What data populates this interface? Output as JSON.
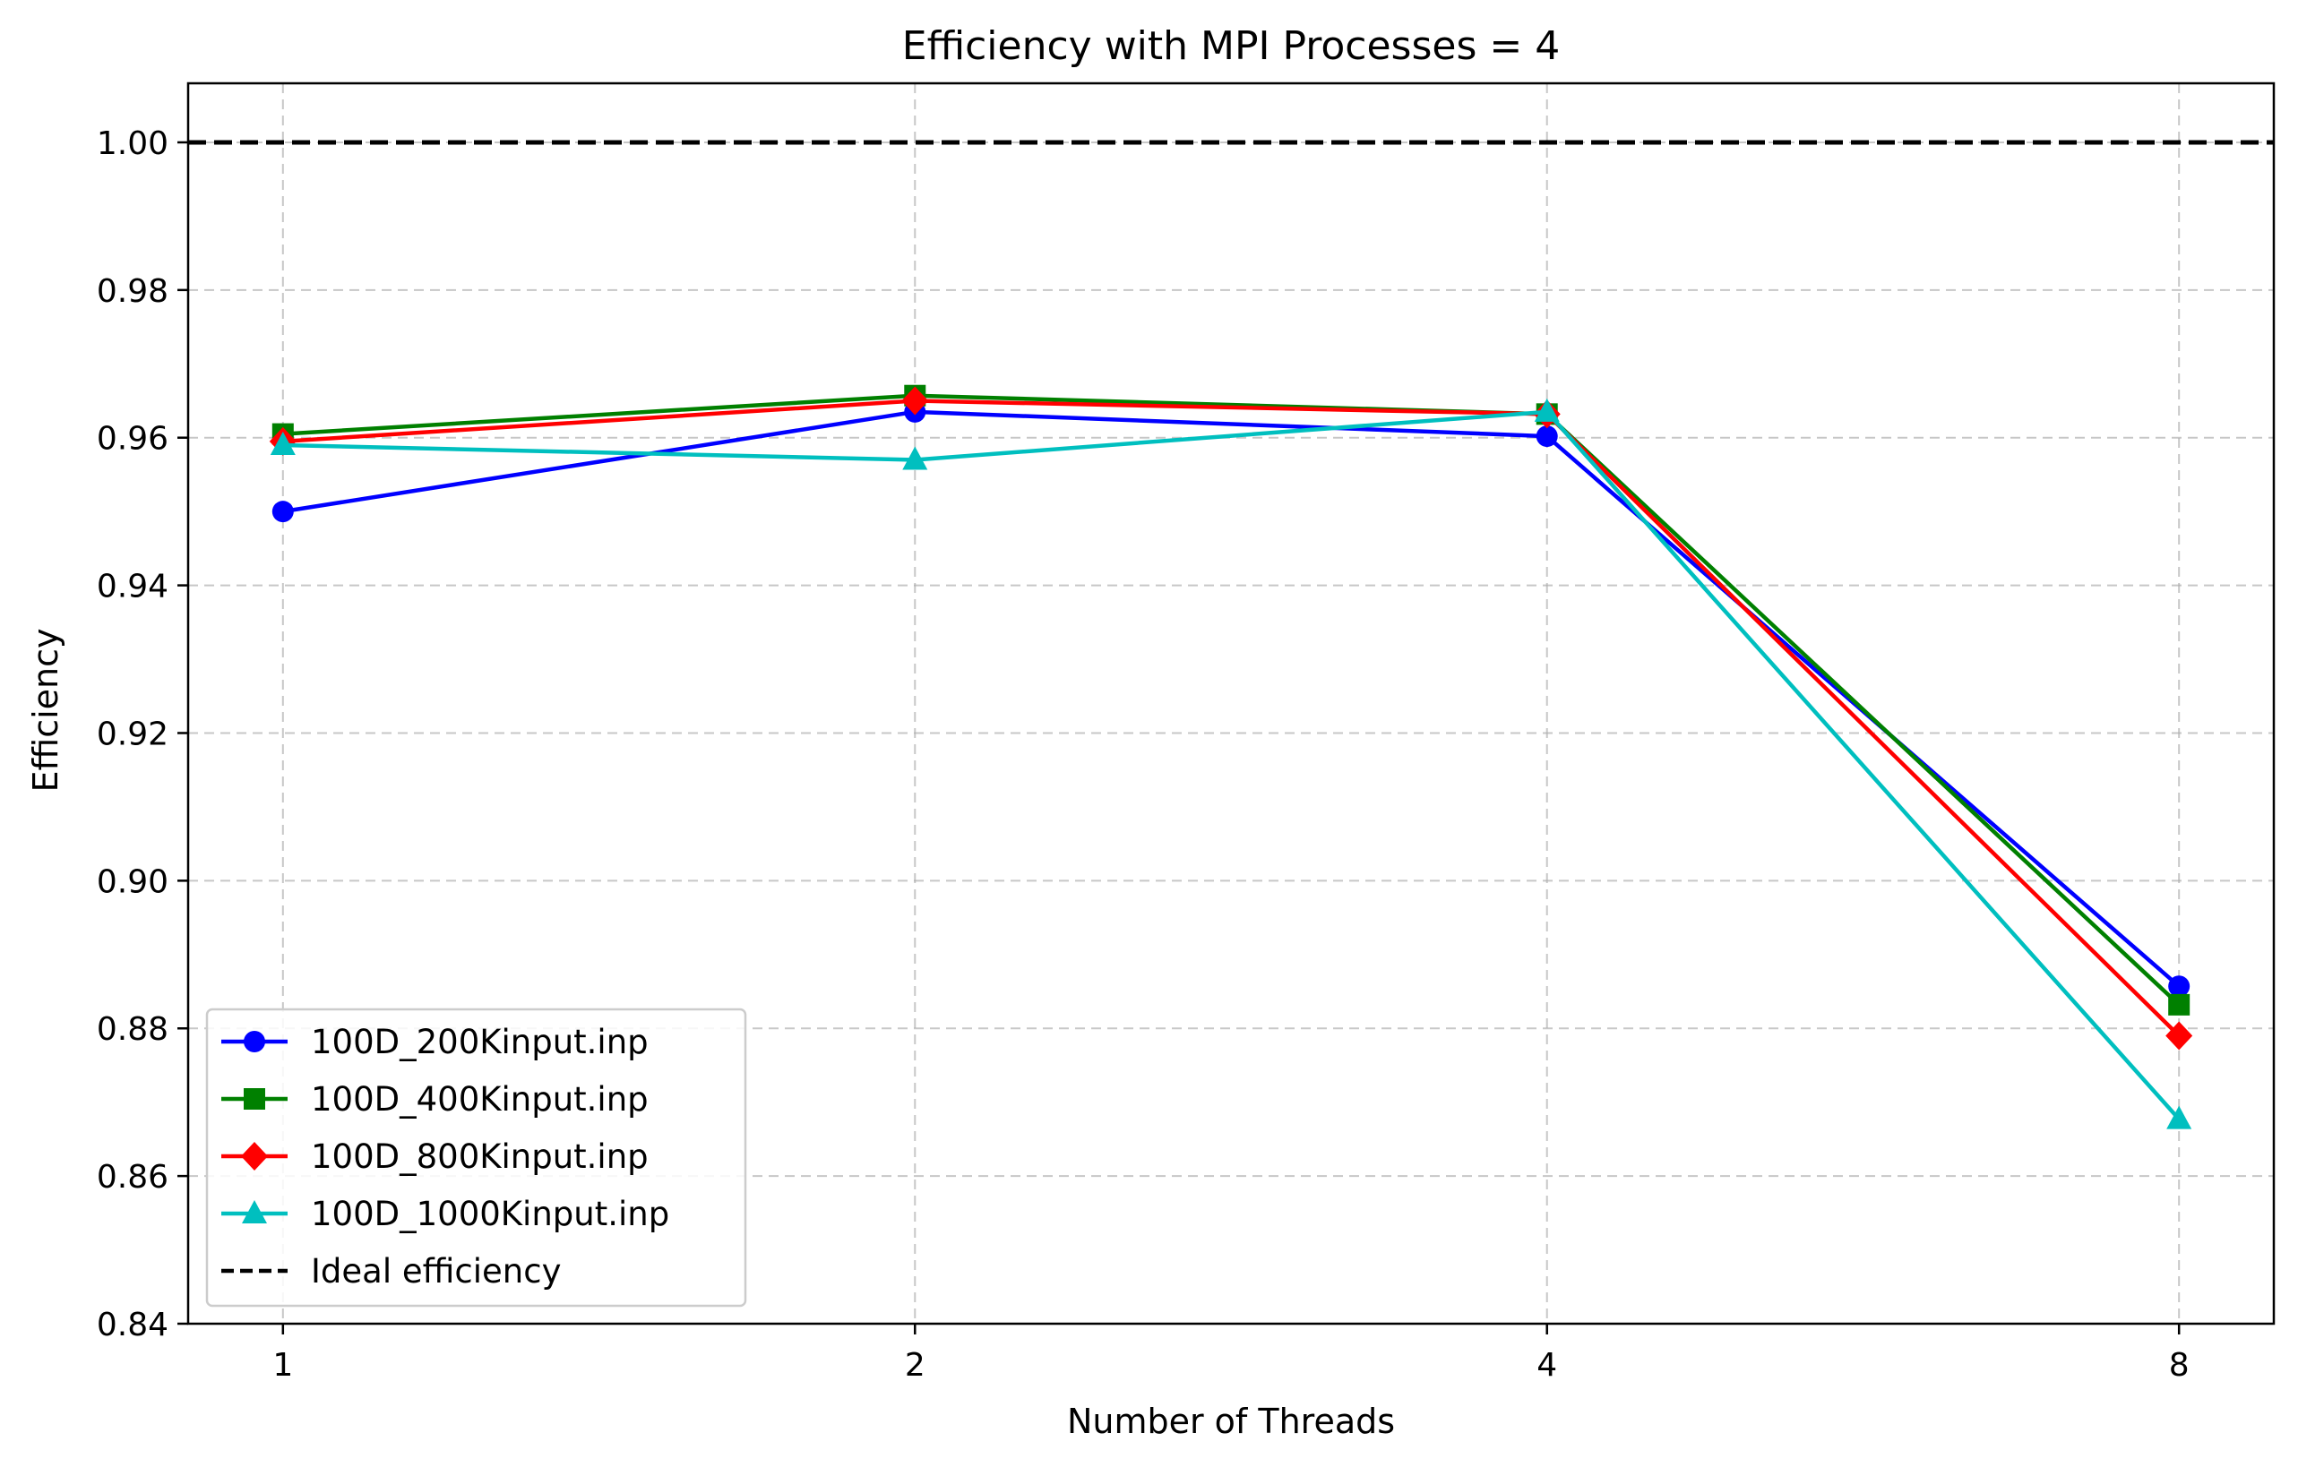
{
  "chart_data": {
    "type": "line",
    "title": "Efficiency with MPI Processes = 4",
    "xlabel": "Number of Threads",
    "ylabel": "Efficiency",
    "x": [
      "1",
      "2",
      "4",
      "8"
    ],
    "ylim": [
      0.84,
      1.008
    ],
    "yticks": [
      "0.84",
      "0.86",
      "0.88",
      "0.90",
      "0.92",
      "0.94",
      "0.96",
      "0.98",
      "1.00"
    ],
    "ytick_values": [
      0.84,
      0.86,
      0.88,
      0.9,
      0.92,
      0.94,
      0.96,
      0.98,
      1.0
    ],
    "grid": true,
    "legend_position": "lower-left",
    "series": [
      {
        "name": "100D_200Kinput.inp",
        "color": "#0000ff",
        "marker": "circle",
        "values": [
          0.95,
          0.9635,
          0.9602,
          0.8857
        ]
      },
      {
        "name": "100D_400Kinput.inp",
        "color": "#008000",
        "marker": "square",
        "values": [
          0.9605,
          0.9657,
          0.9632,
          0.8832
        ]
      },
      {
        "name": "100D_800Kinput.inp",
        "color": "#ff0000",
        "marker": "diamond",
        "values": [
          0.9595,
          0.965,
          0.9632,
          0.879
        ]
      },
      {
        "name": "100D_1000Kinput.inp",
        "color": "#00bfbf",
        "marker": "triangle",
        "values": [
          0.959,
          0.957,
          0.9635,
          0.8677
        ]
      }
    ],
    "reference_line": {
      "name": "Ideal efficiency",
      "value": 1.0,
      "color": "#000000",
      "style": "dashed"
    }
  }
}
